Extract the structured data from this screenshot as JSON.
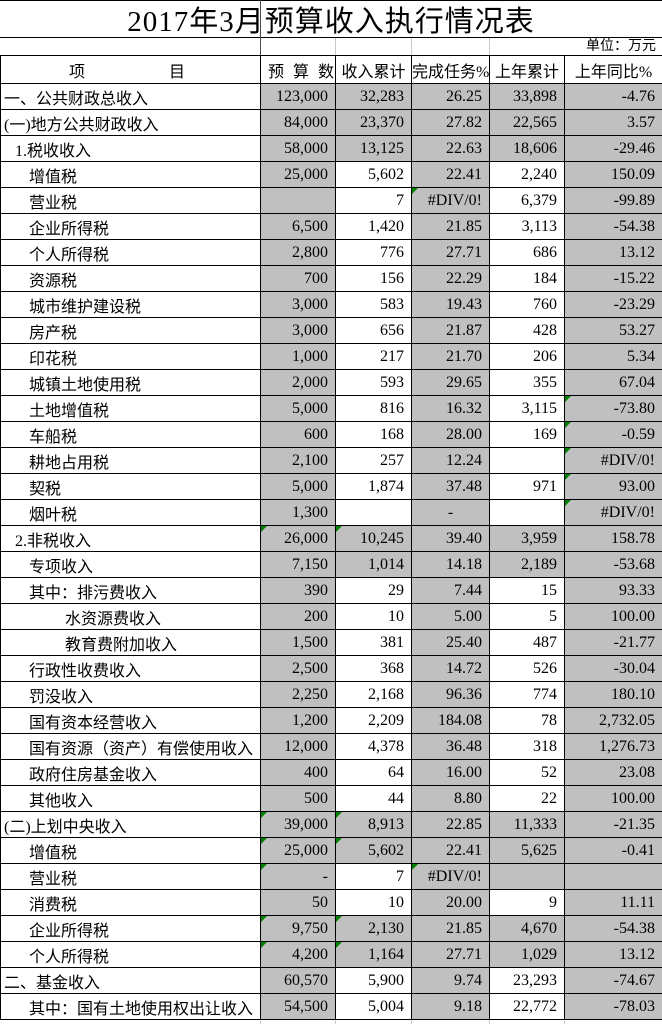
{
  "title": "2017年3月预算收入执行情况表",
  "unit_label": "单位：万元",
  "colors": {
    "cell_fill_gray": "#c0c0c0",
    "cell_fill_white": "#ffffff",
    "border_black": "#000000",
    "error_indicator_green": "#008000",
    "gridline_gray": "#c9c9c9"
  },
  "table": {
    "headers": {
      "item": "项目",
      "budget": "预算数",
      "income_cum": "收入累计",
      "completion": "完成任务%",
      "prev_year_cum": "上年累计",
      "yoy": "上年同比%"
    },
    "rows": [
      {
        "label": "一、公共财政总收入",
        "indent": 0,
        "cells": [
          {
            "v": "123,000",
            "bg": "g"
          },
          {
            "v": "32,283",
            "bg": "g"
          },
          {
            "v": "26.25",
            "bg": "g"
          },
          {
            "v": "33,898",
            "bg": "g"
          },
          {
            "v": "-4.76",
            "bg": "g"
          }
        ]
      },
      {
        "label": "(一)地方公共财政收入",
        "indent": 0,
        "cells": [
          {
            "v": "84,000",
            "bg": "g"
          },
          {
            "v": "23,370",
            "bg": "g"
          },
          {
            "v": "27.82",
            "bg": "g"
          },
          {
            "v": "22,565",
            "bg": "g"
          },
          {
            "v": "3.57",
            "bg": "g"
          }
        ]
      },
      {
        "label": "1.税收收入",
        "indent": 1,
        "cells": [
          {
            "v": "58,000",
            "bg": "g"
          },
          {
            "v": "13,125",
            "bg": "g"
          },
          {
            "v": "22.63",
            "bg": "g"
          },
          {
            "v": "18,606",
            "bg": "g"
          },
          {
            "v": "-29.46",
            "bg": "g"
          }
        ]
      },
      {
        "label": "增值税",
        "indent": 2,
        "cells": [
          {
            "v": "25,000",
            "bg": "g"
          },
          {
            "v": "5,602",
            "bg": "w"
          },
          {
            "v": "22.41",
            "bg": "g"
          },
          {
            "v": "2,240",
            "bg": "w"
          },
          {
            "v": "150.09",
            "bg": "g"
          }
        ]
      },
      {
        "label": "营业税",
        "indent": 2,
        "cells": [
          {
            "v": "",
            "bg": "g"
          },
          {
            "v": "7",
            "bg": "w"
          },
          {
            "v": "#DIV/0!",
            "bg": "g",
            "tri": true
          },
          {
            "v": "6,379",
            "bg": "w"
          },
          {
            "v": "-99.89",
            "bg": "g"
          }
        ]
      },
      {
        "label": "企业所得税",
        "indent": 2,
        "cells": [
          {
            "v": "6,500",
            "bg": "g"
          },
          {
            "v": "1,420",
            "bg": "w"
          },
          {
            "v": "21.85",
            "bg": "g"
          },
          {
            "v": "3,113",
            "bg": "w"
          },
          {
            "v": "-54.38",
            "bg": "g"
          }
        ]
      },
      {
        "label": "个人所得税",
        "indent": 2,
        "cells": [
          {
            "v": "2,800",
            "bg": "g"
          },
          {
            "v": "776",
            "bg": "w"
          },
          {
            "v": "27.71",
            "bg": "g"
          },
          {
            "v": "686",
            "bg": "w"
          },
          {
            "v": "13.12",
            "bg": "g"
          }
        ]
      },
      {
        "label": "资源税",
        "indent": 2,
        "cells": [
          {
            "v": "700",
            "bg": "g"
          },
          {
            "v": "156",
            "bg": "w"
          },
          {
            "v": "22.29",
            "bg": "g"
          },
          {
            "v": "184",
            "bg": "w"
          },
          {
            "v": "-15.22",
            "bg": "g"
          }
        ]
      },
      {
        "label": "城市维护建设税",
        "indent": 2,
        "cells": [
          {
            "v": "3,000",
            "bg": "g"
          },
          {
            "v": "583",
            "bg": "w"
          },
          {
            "v": "19.43",
            "bg": "g"
          },
          {
            "v": "760",
            "bg": "w"
          },
          {
            "v": "-23.29",
            "bg": "g"
          }
        ]
      },
      {
        "label": "房产税",
        "indent": 2,
        "cells": [
          {
            "v": "3,000",
            "bg": "g"
          },
          {
            "v": "656",
            "bg": "w"
          },
          {
            "v": "21.87",
            "bg": "g"
          },
          {
            "v": "428",
            "bg": "w"
          },
          {
            "v": "53.27",
            "bg": "g"
          }
        ]
      },
      {
        "label": "印花税",
        "indent": 2,
        "cells": [
          {
            "v": "1,000",
            "bg": "g"
          },
          {
            "v": "217",
            "bg": "w"
          },
          {
            "v": "21.70",
            "bg": "g"
          },
          {
            "v": "206",
            "bg": "w"
          },
          {
            "v": "5.34",
            "bg": "g"
          }
        ]
      },
      {
        "label": "城镇土地使用税",
        "indent": 2,
        "cells": [
          {
            "v": "2,000",
            "bg": "g"
          },
          {
            "v": "593",
            "bg": "w"
          },
          {
            "v": "29.65",
            "bg": "g"
          },
          {
            "v": "355",
            "bg": "w"
          },
          {
            "v": "67.04",
            "bg": "g"
          }
        ]
      },
      {
        "label": "土地增值税",
        "indent": 2,
        "cells": [
          {
            "v": "5,000",
            "bg": "g"
          },
          {
            "v": "816",
            "bg": "w"
          },
          {
            "v": "16.32",
            "bg": "g"
          },
          {
            "v": "3,115",
            "bg": "w"
          },
          {
            "v": "-73.80",
            "bg": "g",
            "tri": true
          }
        ]
      },
      {
        "label": "车船税",
        "indent": 2,
        "cells": [
          {
            "v": "600",
            "bg": "g"
          },
          {
            "v": "168",
            "bg": "w"
          },
          {
            "v": "28.00",
            "bg": "g"
          },
          {
            "v": "169",
            "bg": "w"
          },
          {
            "v": "-0.59",
            "bg": "g",
            "tri": true
          }
        ]
      },
      {
        "label": "耕地占用税",
        "indent": 2,
        "cells": [
          {
            "v": "2,100",
            "bg": "g"
          },
          {
            "v": "257",
            "bg": "w"
          },
          {
            "v": "12.24",
            "bg": "g"
          },
          {
            "v": "",
            "bg": "w"
          },
          {
            "v": "#DIV/0!",
            "bg": "g",
            "tri": true
          }
        ]
      },
      {
        "label": "契税",
        "indent": 2,
        "cells": [
          {
            "v": "5,000",
            "bg": "g"
          },
          {
            "v": "1,874",
            "bg": "w"
          },
          {
            "v": "37.48",
            "bg": "g"
          },
          {
            "v": "971",
            "bg": "w"
          },
          {
            "v": "93.00",
            "bg": "g",
            "tri": true
          }
        ]
      },
      {
        "label": "烟叶税",
        "indent": 2,
        "cells": [
          {
            "v": "1,300",
            "bg": "g"
          },
          {
            "v": "",
            "bg": "w"
          },
          {
            "v": "-",
            "bg": "g",
            "align": "c"
          },
          {
            "v": "",
            "bg": "w"
          },
          {
            "v": "#DIV/0!",
            "bg": "g",
            "tri": true
          }
        ]
      },
      {
        "label": "2.非税收入",
        "indent": 1,
        "cells": [
          {
            "v": "26,000",
            "bg": "g",
            "tri": true
          },
          {
            "v": "10,245",
            "bg": "g",
            "tri": true
          },
          {
            "v": "39.40",
            "bg": "g"
          },
          {
            "v": "3,959",
            "bg": "g"
          },
          {
            "v": "158.78",
            "bg": "g"
          }
        ]
      },
      {
        "label": "专项收入",
        "indent": 2,
        "cells": [
          {
            "v": "7,150",
            "bg": "g"
          },
          {
            "v": "1,014",
            "bg": "g"
          },
          {
            "v": "14.18",
            "bg": "g"
          },
          {
            "v": "2,189",
            "bg": "g"
          },
          {
            "v": "-53.68",
            "bg": "g"
          }
        ]
      },
      {
        "label": "其中：排污费收入",
        "indent": 2,
        "cells": [
          {
            "v": "390",
            "bg": "g"
          },
          {
            "v": "29",
            "bg": "w"
          },
          {
            "v": "7.44",
            "bg": "g"
          },
          {
            "v": "15",
            "bg": "w"
          },
          {
            "v": "93.33",
            "bg": "g"
          }
        ]
      },
      {
        "label": "水资源费收入",
        "indent": 3,
        "cells": [
          {
            "v": "200",
            "bg": "g"
          },
          {
            "v": "10",
            "bg": "w"
          },
          {
            "v": "5.00",
            "bg": "g"
          },
          {
            "v": "5",
            "bg": "w"
          },
          {
            "v": "100.00",
            "bg": "g"
          }
        ]
      },
      {
        "label": "教育费附加收入",
        "indent": 3,
        "cells": [
          {
            "v": "1,500",
            "bg": "g"
          },
          {
            "v": "381",
            "bg": "w"
          },
          {
            "v": "25.40",
            "bg": "g"
          },
          {
            "v": "487",
            "bg": "w"
          },
          {
            "v": "-21.77",
            "bg": "g"
          }
        ]
      },
      {
        "label": "行政性收费收入",
        "indent": 2,
        "cells": [
          {
            "v": "2,500",
            "bg": "g"
          },
          {
            "v": "368",
            "bg": "w"
          },
          {
            "v": "14.72",
            "bg": "g"
          },
          {
            "v": "526",
            "bg": "w"
          },
          {
            "v": "-30.04",
            "bg": "g"
          }
        ]
      },
      {
        "label": "罚没收入",
        "indent": 2,
        "cells": [
          {
            "v": "2,250",
            "bg": "g"
          },
          {
            "v": "2,168",
            "bg": "w"
          },
          {
            "v": "96.36",
            "bg": "g"
          },
          {
            "v": "774",
            "bg": "w"
          },
          {
            "v": "180.10",
            "bg": "g"
          }
        ]
      },
      {
        "label": "国有资本经营收入",
        "indent": 2,
        "cells": [
          {
            "v": "1,200",
            "bg": "g"
          },
          {
            "v": "2,209",
            "bg": "w"
          },
          {
            "v": "184.08",
            "bg": "g"
          },
          {
            "v": "78",
            "bg": "w"
          },
          {
            "v": "2,732.05",
            "bg": "g"
          }
        ]
      },
      {
        "label": "国有资源（资产）有偿使用收入",
        "indent": 2,
        "cells": [
          {
            "v": "12,000",
            "bg": "g"
          },
          {
            "v": "4,378",
            "bg": "w"
          },
          {
            "v": "36.48",
            "bg": "g"
          },
          {
            "v": "318",
            "bg": "w"
          },
          {
            "v": "1,276.73",
            "bg": "g"
          }
        ]
      },
      {
        "label": "政府住房基金收入",
        "indent": 2,
        "cells": [
          {
            "v": "400",
            "bg": "g"
          },
          {
            "v": "64",
            "bg": "w"
          },
          {
            "v": "16.00",
            "bg": "g"
          },
          {
            "v": "52",
            "bg": "w"
          },
          {
            "v": "23.08",
            "bg": "g"
          }
        ]
      },
      {
        "label": "其他收入",
        "indent": 2,
        "cells": [
          {
            "v": "500",
            "bg": "g"
          },
          {
            "v": "44",
            "bg": "w"
          },
          {
            "v": "8.80",
            "bg": "g"
          },
          {
            "v": "22",
            "bg": "w"
          },
          {
            "v": "100.00",
            "bg": "g"
          }
        ]
      },
      {
        "label": "(二)上划中央收入",
        "indent": 0,
        "cells": [
          {
            "v": "39,000",
            "bg": "g",
            "tri": true
          },
          {
            "v": "8,913",
            "bg": "g",
            "tri": true
          },
          {
            "v": "22.85",
            "bg": "g"
          },
          {
            "v": "11,333",
            "bg": "g"
          },
          {
            "v": "-21.35",
            "bg": "g"
          }
        ]
      },
      {
        "label": "增值税",
        "indent": 2,
        "cells": [
          {
            "v": "25,000",
            "bg": "g",
            "tri": true
          },
          {
            "v": "5,602",
            "bg": "g",
            "tri": true
          },
          {
            "v": "22.41",
            "bg": "g"
          },
          {
            "v": "5,625",
            "bg": "g"
          },
          {
            "v": "-0.41",
            "bg": "g"
          }
        ]
      },
      {
        "label": "营业税",
        "indent": 2,
        "cells": [
          {
            "v": "-",
            "bg": "g",
            "tri": true
          },
          {
            "v": "7",
            "bg": "w"
          },
          {
            "v": "#DIV/0!",
            "bg": "g",
            "tri": true
          },
          {
            "v": "",
            "bg": "g"
          },
          {
            "v": "",
            "bg": "g"
          }
        ]
      },
      {
        "label": "消费税",
        "indent": 2,
        "cells": [
          {
            "v": "50",
            "bg": "g"
          },
          {
            "v": "10",
            "bg": "w"
          },
          {
            "v": "20.00",
            "bg": "g"
          },
          {
            "v": "9",
            "bg": "w"
          },
          {
            "v": "11.11",
            "bg": "g"
          }
        ]
      },
      {
        "label": "企业所得税",
        "indent": 2,
        "cells": [
          {
            "v": "9,750",
            "bg": "g",
            "tri": true
          },
          {
            "v": "2,130",
            "bg": "g",
            "tri": true
          },
          {
            "v": "21.85",
            "bg": "g"
          },
          {
            "v": "4,670",
            "bg": "g"
          },
          {
            "v": "-54.38",
            "bg": "g"
          }
        ]
      },
      {
        "label": "个人所得税",
        "indent": 2,
        "cells": [
          {
            "v": "4,200",
            "bg": "g",
            "tri": true
          },
          {
            "v": "1,164",
            "bg": "g",
            "tri": true
          },
          {
            "v": "27.71",
            "bg": "g"
          },
          {
            "v": "1,029",
            "bg": "g"
          },
          {
            "v": "13.12",
            "bg": "g"
          }
        ]
      },
      {
        "label": "二、基金收入",
        "indent": 0,
        "cells": [
          {
            "v": "60,570",
            "bg": "g"
          },
          {
            "v": "5,900",
            "bg": "w"
          },
          {
            "v": "9.74",
            "bg": "g"
          },
          {
            "v": "23,293",
            "bg": "w"
          },
          {
            "v": "-74.67",
            "bg": "g"
          }
        ]
      },
      {
        "label": "其中：国有土地使用权出让收入",
        "indent": 2,
        "cells": [
          {
            "v": "54,500",
            "bg": "g"
          },
          {
            "v": "5,004",
            "bg": "w"
          },
          {
            "v": "9.18",
            "bg": "g"
          },
          {
            "v": "22,772",
            "bg": "w"
          },
          {
            "v": "-78.03",
            "bg": "g"
          }
        ]
      }
    ]
  }
}
